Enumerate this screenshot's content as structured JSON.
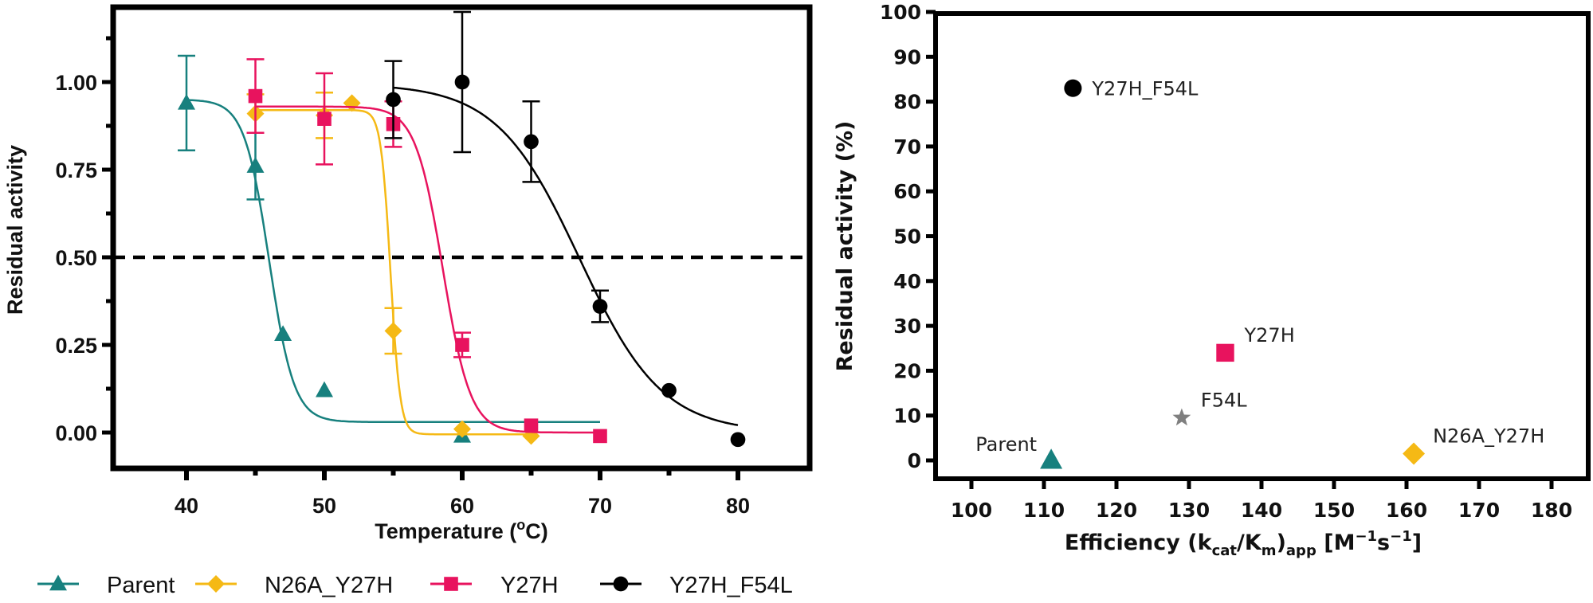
{
  "chart_data": [
    {
      "type": "line",
      "id": "thermal-inactivation",
      "title": "",
      "xlabel": "Temperature (°C)",
      "xlabel_parts": {
        "main": "Temperature (",
        "sup": "o",
        "rest": "C)"
      },
      "ylabel": "Residual activity",
      "xlim": [
        35,
        85
      ],
      "ylim": [
        -0.1,
        1.18
      ],
      "xticks": [
        40,
        50,
        60,
        70,
        80
      ],
      "xminor": [
        45,
        55,
        65,
        75
      ],
      "yticks": [
        0.0,
        0.25,
        0.5,
        0.75,
        1.0
      ],
      "ytick_labels": [
        "0.00",
        "0.25",
        "0.50",
        "0.75",
        "1.00"
      ],
      "yminor": [
        0.125,
        0.375,
        0.625,
        0.875,
        1.125
      ],
      "grid": false,
      "reference_line": {
        "y": 0.5,
        "style": "dashed",
        "color": "#000000"
      },
      "legend_position": "bottom",
      "series": [
        {
          "name": "Parent",
          "color": "#17807e",
          "marker": "triangle",
          "points": [
            {
              "x": 40,
              "y": 0.94,
              "err": 0.135
            },
            {
              "x": 45,
              "y": 0.76,
              "err": 0.095
            },
            {
              "x": 47,
              "y": 0.28,
              "err": null
            },
            {
              "x": 50,
              "y": 0.12,
              "err": null
            },
            {
              "x": 60,
              "y": -0.01,
              "err": null
            }
          ],
          "fit": {
            "top": 0.95,
            "bottom": 0.03,
            "tm": 46.0,
            "slope": 0.9,
            "x_range": [
              40,
              70
            ]
          }
        },
        {
          "name": "N26A_Y27H",
          "color": "#f5b915",
          "marker": "diamond",
          "points": [
            {
              "x": 45,
              "y": 0.91,
              "err": 0.055
            },
            {
              "x": 50,
              "y": 0.905,
              "err": 0.065
            },
            {
              "x": 52,
              "y": 0.94,
              "err": null
            },
            {
              "x": 55,
              "y": 0.29,
              "err": 0.065
            },
            {
              "x": 60,
              "y": 0.01,
              "err": null
            },
            {
              "x": 65,
              "y": -0.01,
              "err": null
            }
          ],
          "fit": {
            "top": 0.92,
            "bottom": -0.005,
            "tm": 54.8,
            "slope": 0.35,
            "x_range": [
              45,
              65
            ]
          }
        },
        {
          "name": "Y27H",
          "color": "#e8135e",
          "marker": "square",
          "points": [
            {
              "x": 45,
              "y": 0.96,
              "err": 0.105
            },
            {
              "x": 50,
              "y": 0.895,
              "err": 0.13
            },
            {
              "x": 55,
              "y": 0.88,
              "err": 0.065
            },
            {
              "x": 60,
              "y": 0.25,
              "err": 0.035
            },
            {
              "x": 65,
              "y": 0.02,
              "err": null
            },
            {
              "x": 70,
              "y": -0.01,
              "err": null
            }
          ],
          "fit": {
            "top": 0.93,
            "bottom": 0.0,
            "tm": 58.6,
            "slope": 1.0,
            "x_range": [
              45,
              70
            ]
          }
        },
        {
          "name": "Y27H_F54L",
          "color": "#000000",
          "marker": "circle",
          "points": [
            {
              "x": 55,
              "y": 0.95,
              "err": 0.11
            },
            {
              "x": 60,
              "y": 1.0,
              "err": 0.2
            },
            {
              "x": 65,
              "y": 0.83,
              "err": 0.115
            },
            {
              "x": 70,
              "y": 0.36,
              "err": 0.045
            },
            {
              "x": 75,
              "y": 0.12,
              "err": null
            },
            {
              "x": 80,
              "y": -0.02,
              "err": null
            }
          ],
          "fit": {
            "top": 0.995,
            "bottom": 0.0,
            "tm": 68.5,
            "slope": 3.0,
            "x_range": [
              55,
              80
            ]
          }
        }
      ]
    },
    {
      "type": "scatter",
      "id": "efficiency-vs-activity",
      "title": "",
      "xlabel": "Efficiency (kcat/Km)app [M⁻¹s⁻¹]",
      "xlabel_parts": {
        "main": "Efficiency (k",
        "sub1": "cat",
        "mid": "/K",
        "sub2": "m",
        "mid2": ")",
        "sub3": "app",
        "tail1": " [M",
        "sup1": "−1",
        "tail2": "s",
        "sup2": "−1",
        "tail3": "]"
      },
      "ylabel": "Residual activity (%)",
      "xlim": [
        95,
        184
      ],
      "ylim": [
        -4,
        100
      ],
      "xticks": [
        100,
        110,
        120,
        130,
        140,
        150,
        160,
        170,
        180
      ],
      "yticks": [
        0,
        10,
        20,
        30,
        40,
        50,
        60,
        70,
        80,
        90,
        100
      ],
      "grid": false,
      "points": [
        {
          "label": "Parent",
          "x": 111,
          "y": 0,
          "color": "#17807e",
          "marker": "triangle",
          "label_side": "upper-left"
        },
        {
          "label": "F54L",
          "x": 129,
          "y": 9.5,
          "color": "#7f7f7f",
          "marker": "star",
          "label_side": "upper-right"
        },
        {
          "label": "Y27H",
          "x": 135,
          "y": 24,
          "color": "#e8135e",
          "marker": "square",
          "label_side": "upper-right"
        },
        {
          "label": "N26A_Y27H",
          "x": 161,
          "y": 1.5,
          "color": "#f5b915",
          "marker": "diamond",
          "label_side": "upper-right"
        },
        {
          "label": "Y27H_F54L",
          "x": 114,
          "y": 83,
          "color": "#000000",
          "marker": "circle",
          "label_side": "right"
        }
      ]
    }
  ]
}
